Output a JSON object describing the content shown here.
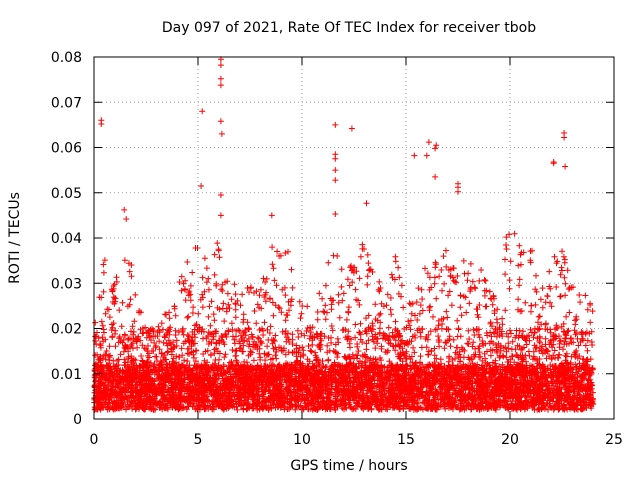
{
  "chart_data": {
    "type": "scatter",
    "title": "Day 097 of 2021, Rate Of TEC Index for receiver tbob",
    "xlabel": "GPS time / hours",
    "ylabel": "ROTI / TECUs",
    "xlim": [
      0,
      25
    ],
    "ylim": [
      0,
      0.08
    ],
    "x_ticks": [
      0,
      5,
      10,
      15,
      20,
      25
    ],
    "x_tick_labels": [
      "0",
      "5",
      "10",
      "15",
      "20",
      "25"
    ],
    "y_ticks": [
      0,
      0.01,
      0.02,
      0.03,
      0.04,
      0.05,
      0.06,
      0.07,
      0.08
    ],
    "y_tick_labels": [
      "0",
      "0.01",
      "0.02",
      "0.03",
      "0.04",
      "0.05",
      "0.06",
      "0.07",
      "0.08"
    ],
    "grid": true,
    "marker": "+",
    "color": "#ff0000",
    "series": [
      {
        "name": "ROTI",
        "x_range": [
          0,
          24
        ],
        "dense_band": [
          0.002,
          0.02
        ],
        "envelope": [
          [
            0,
            0.022
          ],
          [
            0.5,
            0.036
          ],
          [
            1,
            0.03
          ],
          [
            1.5,
            0.04
          ],
          [
            2,
            0.03
          ],
          [
            2.5,
            0.02
          ],
          [
            3,
            0.02
          ],
          [
            3.5,
            0.026
          ],
          [
            4,
            0.03
          ],
          [
            4.5,
            0.035
          ],
          [
            5,
            0.04
          ],
          [
            5.5,
            0.036
          ],
          [
            6,
            0.04
          ],
          [
            6.5,
            0.032
          ],
          [
            7,
            0.028
          ],
          [
            7.5,
            0.03
          ],
          [
            8,
            0.03
          ],
          [
            8.5,
            0.038
          ],
          [
            9,
            0.04
          ],
          [
            9.5,
            0.036
          ],
          [
            10,
            0.025
          ],
          [
            10.5,
            0.025
          ],
          [
            11,
            0.03
          ],
          [
            11.5,
            0.04
          ],
          [
            12,
            0.033
          ],
          [
            12.5,
            0.036
          ],
          [
            13,
            0.04
          ],
          [
            13.5,
            0.033
          ],
          [
            14,
            0.028
          ],
          [
            14.5,
            0.037
          ],
          [
            15,
            0.025
          ],
          [
            15.5,
            0.028
          ],
          [
            16,
            0.04
          ],
          [
            16.5,
            0.035
          ],
          [
            17,
            0.04
          ],
          [
            17.5,
            0.04
          ],
          [
            18,
            0.035
          ],
          [
            18.5,
            0.04
          ],
          [
            19,
            0.028
          ],
          [
            19.5,
            0.032
          ],
          [
            20,
            0.045
          ],
          [
            20.5,
            0.04
          ],
          [
            21,
            0.038
          ],
          [
            21.5,
            0.032
          ],
          [
            22,
            0.035
          ],
          [
            22.5,
            0.038
          ],
          [
            23,
            0.03
          ],
          [
            23.5,
            0.03
          ],
          [
            24,
            0.035
          ]
        ],
        "outliers": [
          [
            0.35,
            0.066
          ],
          [
            0.35,
            0.0652
          ],
          [
            5.2,
            0.068
          ],
          [
            5.15,
            0.0515
          ],
          [
            6.1,
            0.0795
          ],
          [
            6.1,
            0.0782
          ],
          [
            6.1,
            0.0752
          ],
          [
            6.1,
            0.0738
          ],
          [
            6.1,
            0.0658
          ],
          [
            6.15,
            0.063
          ],
          [
            6.1,
            0.0495
          ],
          [
            6.1,
            0.045
          ],
          [
            11.6,
            0.065
          ],
          [
            11.6,
            0.0585
          ],
          [
            11.6,
            0.0575
          ],
          [
            11.6,
            0.055
          ],
          [
            11.6,
            0.0528
          ],
          [
            11.6,
            0.0453
          ],
          [
            12.4,
            0.0642
          ],
          [
            13.1,
            0.0477
          ],
          [
            15.4,
            0.0582
          ],
          [
            16.1,
            0.0612
          ],
          [
            16.0,
            0.0582
          ],
          [
            16.45,
            0.0605
          ],
          [
            16.4,
            0.0598
          ],
          [
            16.4,
            0.0535
          ],
          [
            17.5,
            0.052
          ],
          [
            17.5,
            0.0512
          ],
          [
            17.5,
            0.0502
          ],
          [
            22.1,
            0.0568
          ],
          [
            22.1,
            0.0565
          ],
          [
            22.6,
            0.0632
          ],
          [
            22.6,
            0.0622
          ],
          [
            22.65,
            0.0558
          ],
          [
            23.85,
            0.0252
          ],
          [
            23.85,
            0.0255
          ],
          [
            8.55,
            0.045
          ],
          [
            1.45,
            0.0462
          ],
          [
            1.55,
            0.0442
          ]
        ]
      }
    ]
  }
}
